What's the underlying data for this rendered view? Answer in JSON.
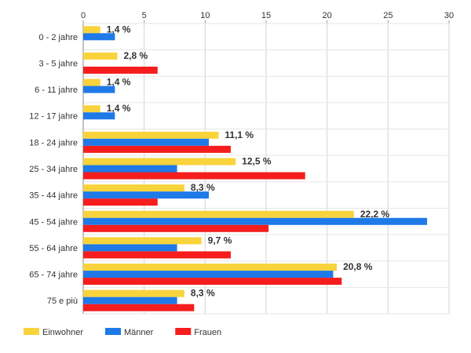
{
  "chart_data": {
    "type": "bar",
    "orientation": "horizontal",
    "xlim": [
      0,
      30
    ],
    "x_ticks": [
      "0",
      "5",
      "10",
      "15",
      "20",
      "25",
      "30"
    ],
    "grid": true,
    "legend_position": "bottom-left",
    "categories": [
      "0 - 2 jahre",
      "3 - 5 jahre",
      "6 - 11 jahre",
      "12 - 17 jahre",
      "18 - 24 jahre",
      "25 - 34 jahre",
      "35 - 44 jahre",
      "45 - 54 jahre",
      "55 - 64 jahre",
      "65 - 74 jahre",
      "75 e più"
    ],
    "series": [
      {
        "name": "Einwohner",
        "color": "#f9d33b",
        "values": [
          1.4,
          2.8,
          1.4,
          1.4,
          11.1,
          12.5,
          8.3,
          22.2,
          9.7,
          20.8,
          8.3
        ],
        "labels": [
          "1,4 %",
          "2,8 %",
          "1,4 %",
          "1,4 %",
          "11,1 %",
          "12,5 %",
          "8,3 %",
          "22,2 %",
          "9,7 %",
          "20,8 %",
          "8,3 %"
        ]
      },
      {
        "name": "Männer",
        "color": "#1f7ae8",
        "values": [
          2.6,
          0,
          2.6,
          2.6,
          10.3,
          7.7,
          10.3,
          28.2,
          7.7,
          20.5,
          7.7
        ]
      },
      {
        "name": "Frauen",
        "color": "#f51d1d",
        "values": [
          0,
          6.1,
          0,
          0,
          12.1,
          18.2,
          6.1,
          15.2,
          12.1,
          21.2,
          9.1
        ]
      }
    ]
  }
}
